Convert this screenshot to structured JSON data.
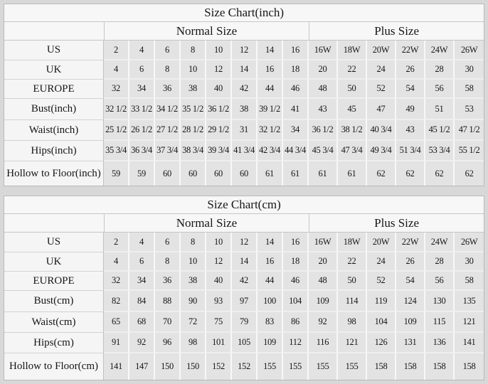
{
  "page": {
    "background_color": "#d8d8d8",
    "cell_color": "#e3e3e3",
    "panel_color": "#f6f6f6"
  },
  "tables": [
    {
      "title": "Size Chart(inch)",
      "group_headers": [
        {
          "label": "Normal Size",
          "span": 8
        },
        {
          "label": "Plus Size",
          "span": 6
        }
      ],
      "rows": [
        {
          "label": "US",
          "values": [
            "2",
            "4",
            "6",
            "8",
            "10",
            "12",
            "14",
            "16",
            "16W",
            "18W",
            "20W",
            "22W",
            "24W",
            "26W"
          ]
        },
        {
          "label": "UK",
          "values": [
            "4",
            "6",
            "8",
            "10",
            "12",
            "14",
            "16",
            "18",
            "20",
            "22",
            "24",
            "26",
            "28",
            "30"
          ]
        },
        {
          "label": "EUROPE",
          "values": [
            "32",
            "34",
            "36",
            "38",
            "40",
            "42",
            "44",
            "46",
            "48",
            "50",
            "52",
            "54",
            "56",
            "58"
          ]
        },
        {
          "label": "Bust(inch)",
          "values": [
            "32 1/2",
            "33 1/2",
            "34 1/2",
            "35 1/2",
            "36 1/2",
            "38",
            "39 1/2",
            "41",
            "43",
            "45",
            "47",
            "49",
            "51",
            "53"
          ]
        },
        {
          "label": "Waist(inch)",
          "values": [
            "25 1/2",
            "26 1/2",
            "27 1/2",
            "28 1/2",
            "29 1/2",
            "31",
            "32 1/2",
            "34",
            "36 1/2",
            "38 1/2",
            "40 3/4",
            "43",
            "45 1/2",
            "47 1/2"
          ]
        },
        {
          "label": "Hips(inch)",
          "values": [
            "35 3/4",
            "36 3/4",
            "37 3/4",
            "38 3/4",
            "39 3/4",
            "41 3/4",
            "42 3/4",
            "44 3/4",
            "45 3/4",
            "47 3/4",
            "49 3/4",
            "51 3/4",
            "53 3/4",
            "55 1/2"
          ]
        },
        {
          "label": "Hollow to Floor(inch)",
          "values": [
            "59",
            "59",
            "60",
            "60",
            "60",
            "60",
            "61",
            "61",
            "61",
            "61",
            "62",
            "62",
            "62",
            "62"
          ]
        }
      ]
    },
    {
      "title": "Size Chart(cm)",
      "group_headers": [
        {
          "label": "Normal Size",
          "span": 8
        },
        {
          "label": "Plus Size",
          "span": 6
        }
      ],
      "rows": [
        {
          "label": "US",
          "values": [
            "2",
            "4",
            "6",
            "8",
            "10",
            "12",
            "14",
            "16",
            "16W",
            "18W",
            "20W",
            "22W",
            "24W",
            "26W"
          ]
        },
        {
          "label": "UK",
          "values": [
            "4",
            "6",
            "8",
            "10",
            "12",
            "14",
            "16",
            "18",
            "20",
            "22",
            "24",
            "26",
            "28",
            "30"
          ]
        },
        {
          "label": "EUROPE",
          "values": [
            "32",
            "34",
            "36",
            "38",
            "40",
            "42",
            "44",
            "46",
            "48",
            "50",
            "52",
            "54",
            "56",
            "58"
          ]
        },
        {
          "label": "Bust(cm)",
          "values": [
            "82",
            "84",
            "88",
            "90",
            "93",
            "97",
            "100",
            "104",
            "109",
            "114",
            "119",
            "124",
            "130",
            "135"
          ]
        },
        {
          "label": "Waist(cm)",
          "values": [
            "65",
            "68",
            "70",
            "72",
            "75",
            "79",
            "83",
            "86",
            "92",
            "98",
            "104",
            "109",
            "115",
            "121"
          ]
        },
        {
          "label": "Hips(cm)",
          "values": [
            "91",
            "92",
            "96",
            "98",
            "101",
            "105",
            "109",
            "112",
            "116",
            "121",
            "126",
            "131",
            "136",
            "141"
          ]
        },
        {
          "label": "Hollow to Floor(cm)",
          "values": [
            "141",
            "147",
            "150",
            "150",
            "152",
            "152",
            "155",
            "155",
            "155",
            "155",
            "158",
            "158",
            "158",
            "158"
          ]
        }
      ]
    }
  ]
}
